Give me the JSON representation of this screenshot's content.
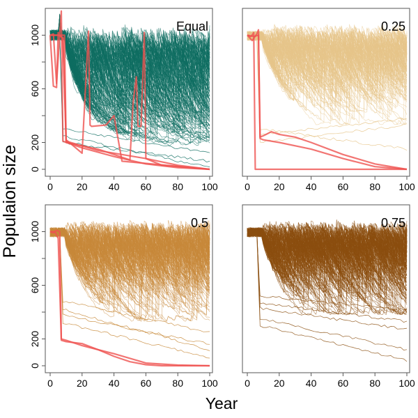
{
  "figure": {
    "ylabel": "Populaion size",
    "xlabel": "Year"
  },
  "chart_data": [
    {
      "type": "line",
      "panel_label": "Equal",
      "xlim": [
        0,
        100
      ],
      "ylim": [
        0,
        1200
      ],
      "x_ticks": [
        0,
        20,
        40,
        60,
        80,
        100
      ],
      "y_ticks": [
        0,
        200,
        600,
        1000
      ],
      "show_y_axis": true,
      "bundle_color": "#0f6e62",
      "highlight_color": "#ef5350",
      "num_simulated_lines": 140,
      "highlight_series": [
        {
          "x": [
            0,
            2,
            4,
            5,
            6,
            7,
            8,
            10,
            20,
            40,
            60,
            80,
            100
          ],
          "y": [
            1000,
            620,
            610,
            1020,
            1000,
            1180,
            210,
            200,
            160,
            95,
            40,
            12,
            0
          ]
        },
        {
          "x": [
            0,
            2,
            4,
            6,
            8,
            10,
            20,
            24,
            25,
            26,
            35,
            40,
            45,
            100
          ],
          "y": [
            1000,
            1010,
            640,
            1000,
            980,
            220,
            120,
            1030,
            330,
            320,
            330,
            400,
            60,
            0
          ]
        },
        {
          "x": [
            0,
            5,
            8,
            10,
            30,
            50,
            52,
            54,
            55,
            57,
            59,
            60,
            70,
            100
          ],
          "y": [
            1000,
            1000,
            980,
            200,
            150,
            70,
            500,
            690,
            320,
            320,
            1020,
            80,
            30,
            0
          ]
        },
        {
          "x": [
            0,
            5,
            9,
            10,
            30,
            60,
            80,
            100
          ],
          "y": [
            1000,
            1000,
            1000,
            210,
            140,
            80,
            30,
            0
          ]
        }
      ]
    },
    {
      "type": "line",
      "panel_label": "0.25",
      "xlim": [
        0,
        100
      ],
      "ylim": [
        0,
        1200
      ],
      "x_ticks": [
        0,
        20,
        40,
        60,
        80,
        100
      ],
      "y_ticks": [
        0,
        200,
        600,
        1000
      ],
      "show_y_axis": false,
      "bundle_color": "#e7c58a",
      "highlight_color": "#ef5350",
      "num_simulated_lines": 140,
      "highlight_series": [
        {
          "x": [
            0,
            2,
            3,
            4,
            5,
            6,
            100
          ],
          "y": [
            1000,
            990,
            1000,
            1020,
            0,
            0,
            0
          ]
        },
        {
          "x": [
            0,
            3,
            6,
            7,
            8,
            10,
            15,
            20,
            30,
            40,
            60,
            80,
            100
          ],
          "y": [
            1000,
            960,
            1010,
            1040,
            240,
            250,
            280,
            260,
            240,
            200,
            110,
            40,
            0
          ]
        },
        {
          "x": [
            0,
            4,
            7,
            8,
            10,
            20,
            40,
            60,
            80,
            100
          ],
          "y": [
            1000,
            990,
            1000,
            230,
            220,
            200,
            150,
            80,
            20,
            0
          ]
        }
      ]
    },
    {
      "type": "line",
      "panel_label": "0.5",
      "xlim": [
        0,
        100
      ],
      "ylim": [
        0,
        1200
      ],
      "x_ticks": [
        0,
        20,
        40,
        60,
        80,
        100
      ],
      "y_ticks": [
        0,
        200,
        600,
        1000
      ],
      "show_y_axis": true,
      "bundle_color": "#c8893a",
      "highlight_color": "#ef5350",
      "num_simulated_lines": 150,
      "highlight_series": [
        {
          "x": [
            0,
            2,
            4,
            6,
            7,
            10,
            20,
            30,
            40,
            50,
            60,
            70,
            100
          ],
          "y": [
            1000,
            990,
            1010,
            1000,
            190,
            180,
            165,
            120,
            70,
            30,
            8,
            0,
            0
          ]
        },
        {
          "x": [
            0,
            3,
            5,
            7,
            10,
            20,
            40,
            60,
            80,
            100
          ],
          "y": [
            1000,
            1000,
            950,
            200,
            190,
            150,
            90,
            20,
            5,
            0
          ]
        }
      ]
    },
    {
      "type": "line",
      "panel_label": "0.75",
      "xlim": [
        0,
        100
      ],
      "ylim": [
        0,
        1200
      ],
      "x_ticks": [
        0,
        20,
        40,
        60,
        80,
        100
      ],
      "y_ticks": [
        0,
        200,
        600,
        1000
      ],
      "show_y_axis": false,
      "bundle_color": "#8b4f0f",
      "highlight_color": "#ef5350",
      "num_simulated_lines": 160,
      "highlight_series": []
    }
  ]
}
